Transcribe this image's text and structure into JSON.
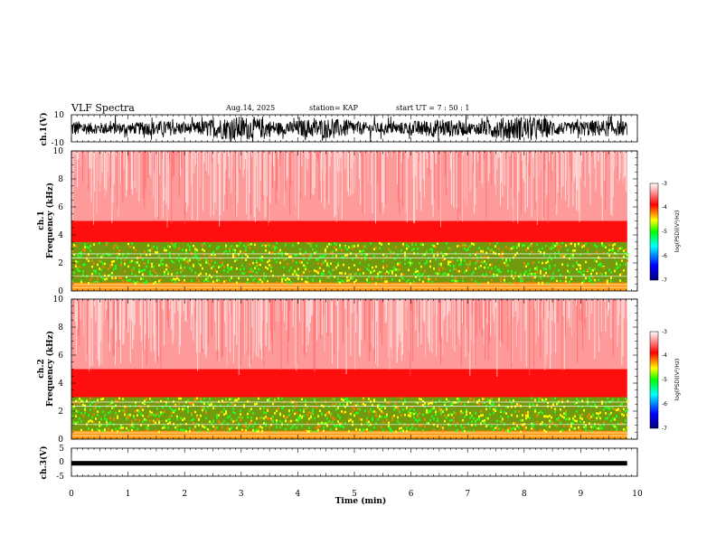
{
  "header": {
    "title": "VLF Spectra",
    "date": "Aug.14, 2025",
    "station": "station= KAP",
    "start": "start  UT =   7 : 50 : 1"
  },
  "chart_data": [
    {
      "type": "line",
      "name": "ch.1 waveform",
      "ylabel": "ch.1(V)",
      "ylim": [
        -10,
        10
      ],
      "yticks": [
        "10",
        "-10"
      ],
      "xlim": [
        0,
        10
      ],
      "data_extent_min": 9.82,
      "note": "dense noise-like waveform, envelope roughly -10 to 10 V"
    },
    {
      "type": "heatmap",
      "name": "ch.1 spectrogram",
      "ylabel": "ch.1\nFrequency  (kHz)",
      "ylim": [
        0,
        10
      ],
      "yticks": [
        "0",
        "2",
        "4",
        "6",
        "8",
        "10"
      ],
      "xlim": [
        0,
        10
      ],
      "colorbar": {
        "label": "log(PSD)(V²/Hz)",
        "range": [
          -7,
          -3
        ],
        "ticks": [
          "-3",
          "-4",
          "-5",
          "-6",
          "-7"
        ]
      },
      "bands": [
        {
          "from_khz": 0.0,
          "to_khz": 0.6,
          "level": -4.2
        },
        {
          "from_khz": 0.6,
          "to_khz": 3.5,
          "level": -4.9
        },
        {
          "from_khz": 3.5,
          "to_khz": 5.0,
          "level": -3.8
        },
        {
          "from_khz": 5.0,
          "to_khz": 10.0,
          "level": -3.3
        }
      ]
    },
    {
      "type": "heatmap",
      "name": "ch.2 spectrogram",
      "ylabel": "ch.2\nFrequency  (kHz)",
      "ylim": [
        0,
        10
      ],
      "yticks": [
        "0",
        "2",
        "4",
        "6",
        "8",
        "10"
      ],
      "xlim": [
        0,
        10
      ],
      "colorbar": {
        "label": "log(PSD)(V²/Hz)",
        "range": [
          -7,
          -3
        ],
        "ticks": [
          "-3",
          "-4",
          "-5",
          "-6",
          "-7"
        ]
      },
      "bands": [
        {
          "from_khz": 0.0,
          "to_khz": 0.6,
          "level": -4.2
        },
        {
          "from_khz": 0.6,
          "to_khz": 3.0,
          "level": -4.9
        },
        {
          "from_khz": 3.0,
          "to_khz": 5.0,
          "level": -3.8
        },
        {
          "from_khz": 5.0,
          "to_khz": 10.0,
          "level": -3.3
        }
      ]
    },
    {
      "type": "line",
      "name": "ch.3 waveform",
      "ylabel": "ch.3(V)",
      "ylim": [
        -5,
        5
      ],
      "yticks": [
        "5",
        "0",
        "-5"
      ],
      "xlim": [
        0,
        10
      ],
      "level_v": -0.4,
      "note": "nearly constant thick trace"
    }
  ],
  "xaxis": {
    "label": "Time  (min)",
    "ticks": [
      "0",
      "1",
      "2",
      "3",
      "4",
      "5",
      "6",
      "7",
      "8",
      "9",
      "10"
    ],
    "range": [
      0,
      10
    ]
  },
  "colors": {
    "axis": "#000000",
    "colormap": [
      "#00007f",
      "#0000ff",
      "#00ffff",
      "#00ff00",
      "#ffff00",
      "#ff0000",
      "#ffffff"
    ]
  }
}
